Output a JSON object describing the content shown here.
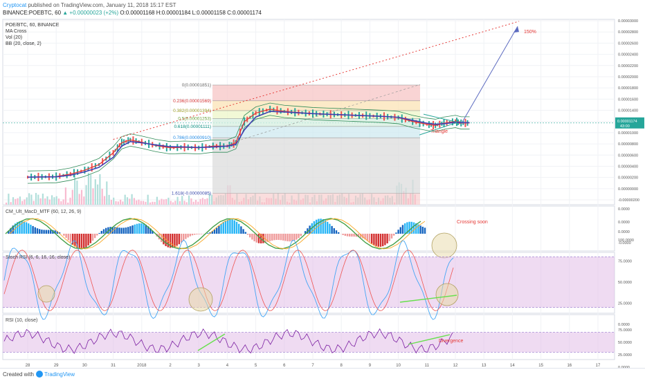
{
  "header": {
    "author": "Cryptocat",
    "published": "published on TradingView.com, January 11, 2018 15:17 EST",
    "symbol": "BINANCE:POEBTC, 60",
    "change": "▲ +0.00000023 (+2%)",
    "ohlc": "O:0.00001168 H:0.00001184 L:0.00001158 C:0.00001174"
  },
  "footer": {
    "created_with": "Created with",
    "brand": "TradingView"
  },
  "colors": {
    "candle_up": "#26a69a",
    "candle_down": "#ef5350",
    "ma_fast": "#e53935",
    "ma_slow": "#3f3fb0",
    "bb": "#2e8b57",
    "accent": "#2196f3"
  },
  "chart_data": {
    "type": "line",
    "title": "POE/BTC, 60, BINANCE",
    "price_axis": {
      "labels": [
        "0.00003000",
        "0.00002800",
        "0.00002600",
        "0.00002400",
        "0.00002200",
        "0.00002000",
        "0.00001800",
        "0.00001600",
        "0.00001400",
        "0.00001200",
        "0.00001000",
        "0.00000800",
        "0.00000600",
        "0.00000400",
        "0.00000200",
        "0.00000000",
        "-0.00000200"
      ],
      "values": [
        3000,
        2800,
        2600,
        2400,
        2200,
        2000,
        1800,
        1600,
        1400,
        1200,
        1000,
        800,
        600,
        400,
        200,
        0,
        -200
      ],
      "last_price": "0.00001174",
      "last_sub": "43:00",
      "unit_note": "x1e-8 BTC"
    },
    "time_axis": {
      "labels": [
        "28",
        "29",
        "30",
        "31",
        "2018",
        "2",
        "3",
        "4",
        "5",
        "6",
        "7",
        "8",
        "9",
        "10",
        "11",
        "12",
        "13",
        "14",
        "15",
        "16",
        "17"
      ],
      "days": [
        0,
        1,
        2,
        3,
        4,
        5,
        6,
        7,
        8,
        9,
        10,
        11,
        12,
        13,
        14,
        15,
        16,
        17,
        18,
        19,
        20
      ]
    },
    "legend": [
      "POE/BTC, 60, BINANCE",
      "MA Cross",
      "Vol (20)",
      "BB (20, close, 2)"
    ],
    "price_series_x": [
      0,
      0.5,
      1,
      1.5,
      2,
      2.5,
      3,
      3.3,
      3.6,
      4,
      4.5,
      5,
      5.5,
      6,
      6.5,
      7,
      7.3,
      7.6,
      8,
      8.5,
      9,
      9.5,
      10,
      10.5,
      11,
      11.5,
      12,
      12.5,
      13,
      13.5,
      14,
      14.3,
      14.6,
      15,
      15.2,
      15.5
    ],
    "price_series_y": [
      205,
      210,
      215,
      260,
      330,
      430,
      640,
      820,
      870,
      830,
      770,
      730,
      740,
      730,
      760,
      760,
      820,
      1200,
      1350,
      1420,
      1380,
      1360,
      1340,
      1330,
      1320,
      1310,
      1300,
      1290,
      1270,
      1200,
      1150,
      1130,
      1170,
      1200,
      1174,
      1174
    ],
    "ma_slow_y": [
      205,
      208,
      212,
      240,
      300,
      380,
      560,
      760,
      840,
      820,
      780,
      750,
      745,
      735,
      745,
      760,
      790,
      1050,
      1280,
      1380,
      1370,
      1355,
      1340,
      1330,
      1320,
      1310,
      1300,
      1290,
      1275,
      1220,
      1170,
      1150,
      1160,
      1185,
      1180,
      1178
    ],
    "fib_levels": [
      {
        "label": "0(0.00001851)",
        "value": 1851
      },
      {
        "label": "0.236(0.00001569)",
        "value": 1569
      },
      {
        "label": "0.382(0.00001394)",
        "value": 1394
      },
      {
        "label": "0.5(0.00001253)",
        "value": 1253
      },
      {
        "label": "0.618(0.00001111)",
        "value": 1111
      },
      {
        "label": "0.786(0.00000910)",
        "value": 910
      },
      {
        "label": "1.618(-0.00000085)",
        "value": -85
      }
    ],
    "annotations": {
      "target_pct": "150%",
      "triangle": "Triangle",
      "crossing": "Crossing soon",
      "divergence": "Divergence"
    },
    "macd": {
      "title": "CM_Ult_MacD_MTF (60, 12, 26, 9)",
      "axis_labels": [
        "0.0000",
        "0.0000",
        "0.0000",
        "-0.0000"
      ]
    },
    "stoch": {
      "title": "Stoch RSI (6, 6, 16, 16, close)",
      "axis_labels": [
        "100.0000",
        "75.0000",
        "50.0000",
        "25.0000",
        "0.0000"
      ],
      "axis_values": [
        100,
        75,
        50,
        25,
        0
      ],
      "band": [
        20,
        80
      ]
    },
    "rsi": {
      "title": "RSI (10, close)",
      "axis_labels": [
        "75.0000",
        "50.0000",
        "25.0000",
        "0.0000"
      ],
      "axis_values": [
        75,
        50,
        25,
        0
      ],
      "band": [
        30,
        70
      ]
    }
  }
}
